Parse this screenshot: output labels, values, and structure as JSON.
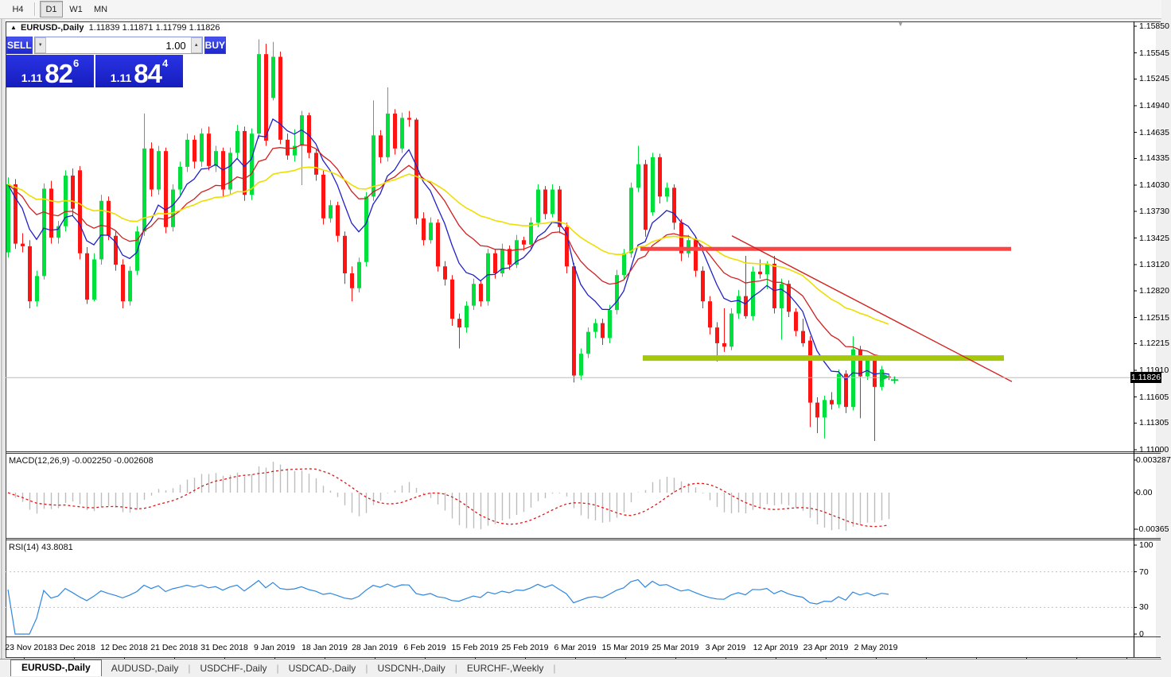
{
  "toolbar": {
    "buttons": [
      "H4",
      "D1",
      "W1",
      "MN"
    ],
    "active": "D1"
  },
  "chart_header": {
    "symbol": "EURUSD-,Daily",
    "ohlc": "1.11839 1.11871 1.11799 1.11826"
  },
  "trade_panel": {
    "sell_label": "SELL",
    "buy_label": "BUY",
    "volume": "1.00",
    "sell_price_prefix": "1.11",
    "sell_price_big": "82",
    "sell_price_sup": "6",
    "buy_price_prefix": "1.11",
    "buy_price_big": "84",
    "buy_price_sup": "4"
  },
  "price_axis": {
    "current": "1.11826",
    "ticks": [
      "1.15850",
      "1.15545",
      "1.15245",
      "1.14940",
      "1.14635",
      "1.14335",
      "1.14030",
      "1.13730",
      "1.13425",
      "1.13120",
      "1.12820",
      "1.12515",
      "1.12215",
      "1.11910",
      "1.11605",
      "1.11305",
      "1.11000"
    ]
  },
  "macd_panel": {
    "label": "MACD(12,26,9) -0.002250 -0.002608",
    "axis_top": "0.003287",
    "axis_zero": "0.00",
    "axis_bottom": "-0.00365"
  },
  "rsi_panel": {
    "label": "RSI(14) 43.8081",
    "axis": [
      "100",
      "70",
      "30",
      "0"
    ],
    "levels": [
      70,
      30
    ],
    "period": 14
  },
  "tabs": [
    {
      "label": "EURUSD-,Daily",
      "active": true
    },
    {
      "label": "AUDUSD-,Daily",
      "active": false
    },
    {
      "label": "USDCHF-,Daily",
      "active": false
    },
    {
      "label": "USDCAD-,Daily",
      "active": false
    },
    {
      "label": "USDCNH-,Daily",
      "active": false
    },
    {
      "label": "EURCHF-,Weekly",
      "active": false
    }
  ],
  "colors": {
    "up": "#00e03c",
    "down": "#ff1414",
    "ma_fast": "#2020c8",
    "ma_mid": "#d02020",
    "ma_slow": "#eede00",
    "macd_hist": "#bdbdbd",
    "macd_signal": "#e01818",
    "rsi": "#2e86e0",
    "hline_red": "#fb4545",
    "hline_olive": "#a6c80a",
    "trend_red": "#d42020",
    "price_line": "#bbbbbb",
    "badge_bg": "#000000",
    "arrow": "#00c838"
  },
  "chart_data": {
    "type": "candlestick",
    "title": "EURUSD-,Daily",
    "ylim": [
      1.11,
      1.1585
    ],
    "current_price": 1.11826,
    "x_labels": [
      "23 Nov 2018",
      "3 Dec 2018",
      "12 Dec 2018",
      "21 Dec 2018",
      "31 Dec 2018",
      "9 Jan 2019",
      "18 Jan 2019",
      "28 Jan 2019",
      "6 Feb 2019",
      "15 Feb 2019",
      "25 Feb 2019",
      "6 Mar 2019",
      "15 Mar 2019",
      "25 Mar 2019",
      "3 Apr 2019",
      "12 Apr 2019",
      "23 Apr 2019",
      "2 May 2019"
    ],
    "moving_averages": [
      {
        "period": 8,
        "color_key": "ma_fast"
      },
      {
        "period": 18,
        "color_key": "ma_mid"
      },
      {
        "period": 40,
        "color_key": "ma_slow"
      }
    ],
    "macd": {
      "fast": 12,
      "slow": 26,
      "signal": 9,
      "main": -0.00225,
      "signal_value": -0.002608,
      "scale_top": 0.003287,
      "scale_bottom": -0.00365
    },
    "rsi": {
      "period": 14,
      "value": 43.8081
    },
    "hlines": [
      {
        "price": 1.133,
        "x1": 805,
        "x2": 1271,
        "thickness": 5,
        "color_key": "hline_red"
      },
      {
        "price": 1.1205,
        "x1": 808,
        "x2": 1262,
        "thickness": 7,
        "color_key": "hline_olive"
      }
    ],
    "trendline": {
      "x1": 920,
      "p1": 1.1345,
      "x2": 1272,
      "p2": 1.1178,
      "color_key": "trend_red"
    },
    "candles": [
      [
        1.1326,
        1.1412,
        1.132,
        1.1404
      ],
      [
        1.1404,
        1.141,
        1.133,
        1.1336
      ],
      [
        1.1336,
        1.1348,
        1.1326,
        1.1333
      ],
      [
        1.1333,
        1.134,
        1.1262,
        1.127
      ],
      [
        1.127,
        1.1305,
        1.1264,
        1.1299
      ],
      [
        1.1299,
        1.1405,
        1.1295,
        1.1399
      ],
      [
        1.1399,
        1.1408,
        1.1336,
        1.1343
      ],
      [
        1.1343,
        1.1362,
        1.1336,
        1.1356
      ],
      [
        1.1356,
        1.142,
        1.135,
        1.1414
      ],
      [
        1.1414,
        1.1422,
        1.1368,
        1.1376
      ],
      [
        1.142,
        1.1425,
        1.1318,
        1.1325
      ],
      [
        1.1325,
        1.1332,
        1.1267,
        1.1272
      ],
      [
        1.1272,
        1.1325,
        1.127,
        1.1318
      ],
      [
        1.1318,
        1.1392,
        1.1312,
        1.1385
      ],
      [
        1.1385,
        1.139,
        1.134,
        1.1345
      ],
      [
        1.1345,
        1.135,
        1.1305,
        1.1312
      ],
      [
        1.1312,
        1.1318,
        1.1262,
        1.127
      ],
      [
        1.127,
        1.131,
        1.1265,
        1.1305
      ],
      [
        1.1305,
        1.1356,
        1.13,
        1.135
      ],
      [
        1.135,
        1.1485,
        1.1345,
        1.1445
      ],
      [
        1.1445,
        1.1452,
        1.139,
        1.1398
      ],
      [
        1.1398,
        1.1448,
        1.1392,
        1.1442
      ],
      [
        1.1442,
        1.1446,
        1.1348,
        1.1355
      ],
      [
        1.1355,
        1.1404,
        1.135,
        1.1398
      ],
      [
        1.1398,
        1.143,
        1.1392,
        1.1424
      ],
      [
        1.1424,
        1.1462,
        1.1418,
        1.1455
      ],
      [
        1.1455,
        1.146,
        1.1422,
        1.143
      ],
      [
        1.143,
        1.1468,
        1.1424,
        1.1462
      ],
      [
        1.1462,
        1.147,
        1.142,
        1.1425
      ],
      [
        1.1425,
        1.1448,
        1.1418,
        1.1442
      ],
      [
        1.1442,
        1.1446,
        1.139,
        1.1398
      ],
      [
        1.1398,
        1.1446,
        1.1392,
        1.144
      ],
      [
        1.144,
        1.1472,
        1.1434,
        1.1465
      ],
      [
        1.1465,
        1.147,
        1.1385,
        1.1392
      ],
      [
        1.1392,
        1.1468,
        1.1386,
        1.1462
      ],
      [
        1.1462,
        1.157,
        1.1456,
        1.1553
      ],
      [
        1.1553,
        1.1565,
        1.1448,
        1.1454
      ],
      [
        1.1503,
        1.1567,
        1.15,
        1.155
      ],
      [
        1.155,
        1.1556,
        1.145,
        1.1455
      ],
      [
        1.1455,
        1.1462,
        1.1432,
        1.1437
      ],
      [
        1.1437,
        1.1467,
        1.143,
        1.1448
      ],
      [
        1.1448,
        1.1488,
        1.1403,
        1.1483
      ],
      [
        1.1483,
        1.1486,
        1.1434,
        1.144
      ],
      [
        1.144,
        1.1444,
        1.1408,
        1.1415
      ],
      [
        1.1415,
        1.142,
        1.1358,
        1.1365
      ],
      [
        1.1365,
        1.1386,
        1.136,
        1.138
      ],
      [
        1.138,
        1.1384,
        1.1338,
        1.1345
      ],
      [
        1.1345,
        1.135,
        1.129,
        1.1302
      ],
      [
        1.1302,
        1.131,
        1.127,
        1.1285
      ],
      [
        1.1285,
        1.132,
        1.128,
        1.1315
      ],
      [
        1.1315,
        1.1395,
        1.131,
        1.139
      ],
      [
        1.139,
        1.15,
        1.1385,
        1.146
      ],
      [
        1.146,
        1.1466,
        1.1428,
        1.1435
      ],
      [
        1.1435,
        1.1515,
        1.143,
        1.1485
      ],
      [
        1.1485,
        1.149,
        1.1438,
        1.1445
      ],
      [
        1.1445,
        1.1486,
        1.144,
        1.148
      ],
      [
        1.148,
        1.1488,
        1.147,
        1.1478
      ],
      [
        1.1478,
        1.148,
        1.1358,
        1.1365
      ],
      [
        1.1365,
        1.1372,
        1.1334,
        1.134
      ],
      [
        1.134,
        1.1366,
        1.1336,
        1.136
      ],
      [
        1.136,
        1.1364,
        1.1304,
        1.131
      ],
      [
        1.131,
        1.1316,
        1.1288,
        1.1295
      ],
      [
        1.1295,
        1.13,
        1.1242,
        1.125
      ],
      [
        1.125,
        1.1256,
        1.1216,
        1.124
      ],
      [
        1.124,
        1.127,
        1.1234,
        1.1265
      ],
      [
        1.1265,
        1.1296,
        1.126,
        1.129
      ],
      [
        1.129,
        1.1294,
        1.1264,
        1.127
      ],
      [
        1.127,
        1.133,
        1.1265,
        1.1325
      ],
      [
        1.1325,
        1.133,
        1.1296,
        1.1302
      ],
      [
        1.1302,
        1.1336,
        1.1298,
        1.133
      ],
      [
        1.133,
        1.1334,
        1.1306,
        1.1312
      ],
      [
        1.1312,
        1.1346,
        1.1308,
        1.134
      ],
      [
        1.134,
        1.1344,
        1.1328,
        1.1335
      ],
      [
        1.1335,
        1.1366,
        1.133,
        1.136
      ],
      [
        1.136,
        1.1404,
        1.1355,
        1.1398
      ],
      [
        1.1398,
        1.1402,
        1.1364,
        1.137
      ],
      [
        1.137,
        1.1404,
        1.1366,
        1.1398
      ],
      [
        1.1398,
        1.1402,
        1.1348,
        1.1355
      ],
      [
        1.1355,
        1.136,
        1.1302,
        1.131
      ],
      [
        1.131,
        1.1314,
        1.1177,
        1.1185
      ],
      [
        1.1185,
        1.1216,
        1.118,
        1.121
      ],
      [
        1.121,
        1.124,
        1.1205,
        1.1235
      ],
      [
        1.1235,
        1.125,
        1.1228,
        1.1245
      ],
      [
        1.1245,
        1.125,
        1.122,
        1.1228
      ],
      [
        1.1228,
        1.1266,
        1.1222,
        1.126
      ],
      [
        1.126,
        1.1306,
        1.1255,
        1.13
      ],
      [
        1.13,
        1.133,
        1.1295,
        1.1325
      ],
      [
        1.1325,
        1.1406,
        1.132,
        1.14
      ],
      [
        1.14,
        1.1448,
        1.1395,
        1.1427
      ],
      [
        1.1427,
        1.1432,
        1.1344,
        1.1352
      ],
      [
        1.1372,
        1.144,
        1.1368,
        1.1435
      ],
      [
        1.1435,
        1.1439,
        1.1382,
        1.139
      ],
      [
        1.139,
        1.1406,
        1.1384,
        1.14
      ],
      [
        1.14,
        1.1404,
        1.1352,
        1.136
      ],
      [
        1.136,
        1.1364,
        1.1316,
        1.1325
      ],
      [
        1.1325,
        1.1346,
        1.132,
        1.134
      ],
      [
        1.134,
        1.1344,
        1.1298,
        1.1305
      ],
      [
        1.1305,
        1.131,
        1.1262,
        1.127
      ],
      [
        1.127,
        1.1276,
        1.1232,
        1.124
      ],
      [
        1.124,
        1.1246,
        1.1201,
        1.1222
      ],
      [
        1.1222,
        1.1262,
        1.1212,
        1.1218
      ],
      [
        1.1218,
        1.1262,
        1.1214,
        1.1256
      ],
      [
        1.1256,
        1.1283,
        1.125,
        1.1276
      ],
      [
        1.1276,
        1.1322,
        1.125,
        1.1253
      ],
      [
        1.1253,
        1.131,
        1.1248,
        1.1304
      ],
      [
        1.1304,
        1.1318,
        1.1296,
        1.1301
      ],
      [
        1.1301,
        1.1316,
        1.1284,
        1.1313
      ],
      [
        1.1313,
        1.1322,
        1.1256,
        1.1262
      ],
      [
        1.1262,
        1.1296,
        1.1226,
        1.129
      ],
      [
        1.129,
        1.1294,
        1.1252,
        1.1258
      ],
      [
        1.1258,
        1.1262,
        1.123,
        1.1236
      ],
      [
        1.1236,
        1.125,
        1.1218,
        1.1222
      ],
      [
        1.1225,
        1.123,
        1.1126,
        1.1154
      ],
      [
        1.1154,
        1.116,
        1.1119,
        1.1137
      ],
      [
        1.1137,
        1.1162,
        1.1113,
        1.1157
      ],
      [
        1.1157,
        1.1166,
        1.1146,
        1.1152
      ],
      [
        1.1152,
        1.1192,
        1.1148,
        1.1187
      ],
      [
        1.1187,
        1.1191,
        1.1142,
        1.1149
      ],
      [
        1.1149,
        1.123,
        1.1145,
        1.1215
      ],
      [
        1.1215,
        1.1219,
        1.1136,
        1.1184
      ],
      [
        1.1184,
        1.1208,
        1.118,
        1.1203
      ],
      [
        1.1203,
        1.1207,
        1.111,
        1.1172
      ],
      [
        1.1172,
        1.1196,
        1.1168,
        1.1192
      ],
      [
        1.11839,
        1.11871,
        1.11799,
        1.11826
      ]
    ]
  }
}
